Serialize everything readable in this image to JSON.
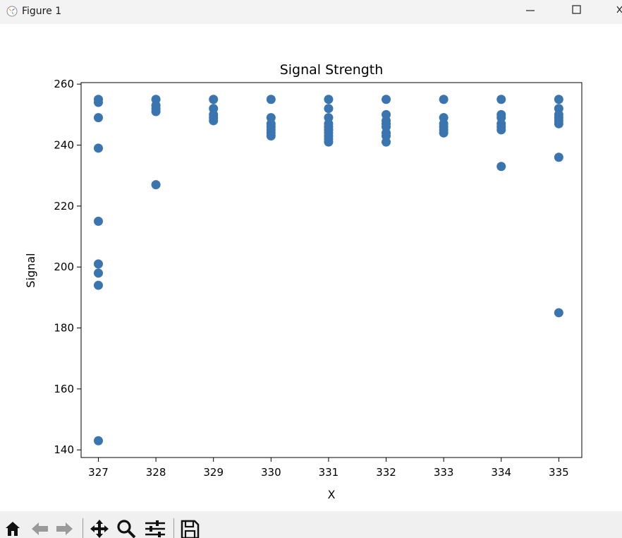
{
  "window": {
    "title": "Figure 1",
    "minimize_icon": "minimize-icon",
    "maximize_icon": "maximize-icon",
    "close_icon": "close-icon"
  },
  "toolbar": {
    "items": [
      "home-icon",
      "back-arrow-icon",
      "forward-arrow-icon",
      "pan-icon",
      "zoom-icon",
      "configure-subplots-icon",
      "save-icon"
    ]
  },
  "colors": {
    "marker": "#3a75b0",
    "axes": "#000000"
  },
  "chart_data": {
    "type": "scatter",
    "title": "Signal Strength",
    "xlabel": "X",
    "ylabel": "Signal",
    "xlim": [
      326.7,
      335.4
    ],
    "ylim": [
      137.5,
      260.5
    ],
    "xticks": [
      327,
      328,
      329,
      330,
      331,
      332,
      333,
      334,
      335
    ],
    "yticks": [
      140,
      160,
      180,
      200,
      220,
      240,
      260
    ],
    "grid": false,
    "legend": "none",
    "series": [
      {
        "x": [
          327,
          327,
          327,
          327,
          327,
          327,
          327,
          327,
          327,
          328,
          328,
          328,
          328,
          328,
          329,
          329,
          329,
          329,
          329,
          330,
          330,
          330,
          330,
          330,
          330,
          330,
          331,
          331,
          331,
          331,
          331,
          331,
          331,
          331,
          331,
          331,
          331,
          332,
          332,
          332,
          332,
          332,
          332,
          332,
          332,
          333,
          333,
          333,
          333,
          333,
          333,
          334,
          334,
          334,
          334,
          334,
          334,
          334,
          335,
          335,
          335,
          335,
          335,
          335,
          335,
          335
        ],
        "y": [
          255,
          254,
          249,
          239,
          215,
          201,
          198,
          194,
          143,
          255,
          253,
          252,
          251,
          227,
          255,
          252,
          250,
          249,
          248,
          255,
          249,
          247,
          246,
          245,
          244,
          243,
          255,
          252,
          249,
          247,
          246,
          245,
          244,
          243,
          242,
          241,
          245,
          255,
          250,
          248,
          247,
          246,
          244,
          243,
          241,
          255,
          249,
          247,
          246,
          245,
          244,
          255,
          250,
          249,
          247,
          246,
          245,
          233,
          255,
          252,
          250,
          249,
          248,
          247,
          236,
          185
        ]
      }
    ]
  }
}
